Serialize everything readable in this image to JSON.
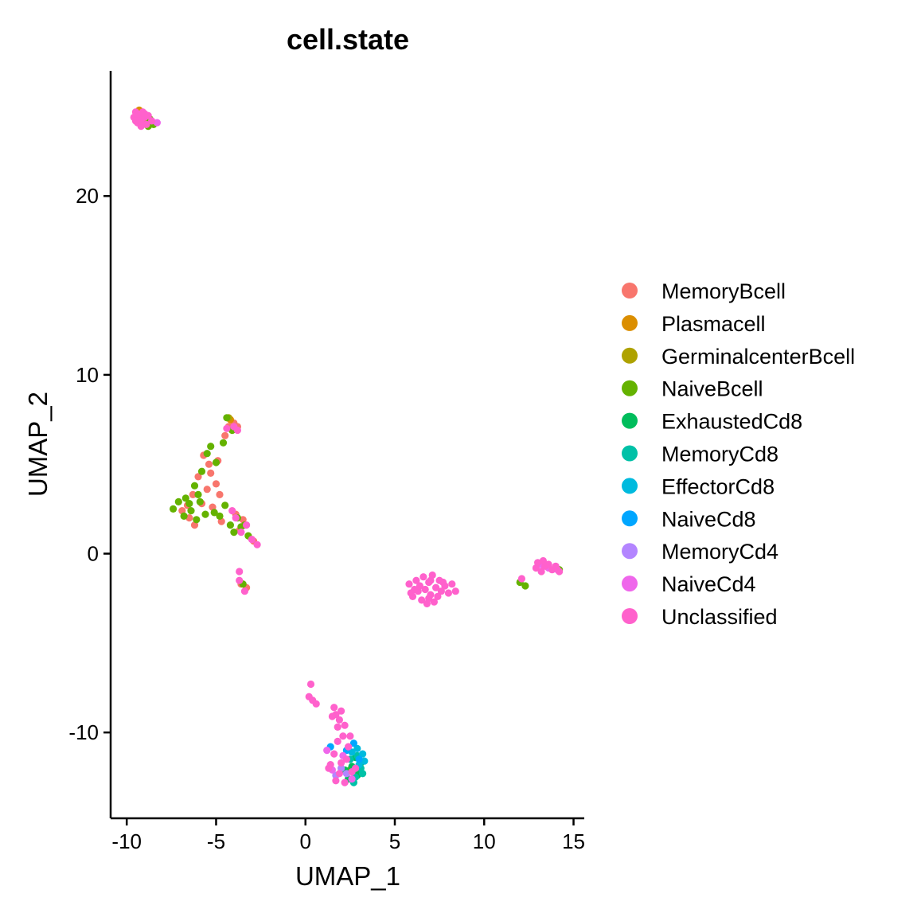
{
  "chart_data": {
    "type": "scatter",
    "title": "cell.state",
    "xlabel": "UMAP_1",
    "ylabel": "UMAP_2",
    "xlim": [
      -10.9,
      15.6
    ],
    "ylim": [
      -14.8,
      27.0
    ],
    "xticks": [
      -10,
      -5,
      0,
      5,
      10,
      15
    ],
    "yticks": [
      -10,
      0,
      10,
      20
    ],
    "grid": false,
    "legend_position": "right",
    "series": [
      {
        "name": "MemoryBcell",
        "color": "#F8766D",
        "points": [
          [
            -6.9,
            2.4
          ],
          [
            -6.5,
            2.0
          ],
          [
            -6.3,
            3.3
          ],
          [
            -6.0,
            4.3
          ],
          [
            -5.8,
            2.8
          ],
          [
            -5.5,
            3.6
          ],
          [
            -5.4,
            5.0
          ],
          [
            -5.2,
            2.6
          ],
          [
            -5.0,
            3.9
          ],
          [
            -4.9,
            5.2
          ],
          [
            -4.7,
            1.8
          ],
          [
            -4.5,
            6.6
          ],
          [
            -4.3,
            7.1
          ],
          [
            -4.1,
            6.9
          ],
          [
            -4.0,
            7.3
          ],
          [
            -3.9,
            2.2
          ],
          [
            -3.7,
            1.3
          ],
          [
            -3.5,
            1.9
          ],
          [
            -3.3,
            -1.9
          ],
          [
            -2.9,
            0.7
          ],
          [
            -6.2,
            1.6
          ],
          [
            -5.7,
            5.5
          ],
          [
            -4.8,
            3.3
          ],
          [
            -3.8,
            7.1
          ],
          [
            -3.6,
            -1.7
          ],
          [
            -6.6,
            2.7
          ],
          [
            -5.3,
            4.5
          ]
        ]
      },
      {
        "name": "Plasmacell",
        "color": "#DB8E00",
        "points": [
          [
            -9.3,
            24.8
          ],
          [
            -4.2,
            7.5
          ]
        ]
      },
      {
        "name": "GerminalcenterBcell",
        "color": "#AEA200",
        "points": [
          [
            -4.3,
            7.6
          ],
          [
            -9.0,
            24.1
          ]
        ]
      },
      {
        "name": "NaiveBcell",
        "color": "#64B200",
        "points": [
          [
            -7.4,
            2.5
          ],
          [
            -7.1,
            2.9
          ],
          [
            -6.8,
            2.1
          ],
          [
            -6.7,
            3.1
          ],
          [
            -6.4,
            2.4
          ],
          [
            -6.2,
            3.8
          ],
          [
            -6.1,
            1.9
          ],
          [
            -5.9,
            2.9
          ],
          [
            -5.8,
            4.6
          ],
          [
            -5.6,
            2.2
          ],
          [
            -5.5,
            5.6
          ],
          [
            -5.3,
            6.0
          ],
          [
            -5.1,
            2.3
          ],
          [
            -5.0,
            5.1
          ],
          [
            -4.8,
            2.1
          ],
          [
            -4.6,
            6.2
          ],
          [
            -4.5,
            2.7
          ],
          [
            -4.4,
            7.6
          ],
          [
            -4.2,
            1.6
          ],
          [
            -4.0,
            1.2
          ],
          [
            -3.8,
            2.0
          ],
          [
            -3.6,
            1.5
          ],
          [
            -3.4,
            1.6
          ],
          [
            -3.2,
            1.0
          ],
          [
            -3.5,
            -1.7
          ],
          [
            -8.5,
            24.0
          ],
          [
            -8.8,
            23.9
          ],
          [
            -8.7,
            24.3
          ],
          [
            -6.5,
            2.8
          ],
          [
            -6.0,
            3.3
          ],
          [
            -4.1,
            6.9
          ],
          [
            12.3,
            -1.8
          ],
          [
            12.0,
            -1.6
          ],
          [
            14.2,
            -0.9
          ],
          [
            2.5,
            -12.1
          ]
        ]
      },
      {
        "name": "ExhaustedCd8",
        "color": "#00BD5C",
        "points": [
          [
            2.2,
            -12.1
          ],
          [
            2.6,
            -11.9
          ],
          [
            2.9,
            -12.4
          ],
          [
            3.1,
            -11.7
          ],
          [
            2.4,
            -12.6
          ],
          [
            2.8,
            -11.4
          ],
          [
            3.0,
            -12.2
          ]
        ]
      },
      {
        "name": "MemoryCd8",
        "color": "#00C1A7",
        "points": [
          [
            2.7,
            -12.8
          ],
          [
            3.1,
            -12.0
          ],
          [
            2.5,
            -11.5
          ],
          [
            2.8,
            -12.5
          ],
          [
            3.2,
            -12.3
          ],
          [
            2.9,
            -11.3
          ]
        ]
      },
      {
        "name": "EffectorCd8",
        "color": "#00BADE",
        "points": [
          [
            3.2,
            -11.2
          ],
          [
            2.9,
            -10.9
          ],
          [
            3.3,
            -11.6
          ],
          [
            2.6,
            -11.1
          ],
          [
            3.0,
            -11.8
          ]
        ]
      },
      {
        "name": "NaiveCd8",
        "color": "#00A6FF",
        "points": [
          [
            1.4,
            -10.8
          ],
          [
            2.3,
            -11.0
          ],
          [
            2.7,
            -10.6
          ],
          [
            3.0,
            -11.5
          ]
        ]
      },
      {
        "name": "MemoryCd4",
        "color": "#B385FF",
        "points": [
          [
            1.7,
            -12.4
          ],
          [
            2.0,
            -12.0
          ],
          [
            2.3,
            -12.3
          ]
        ]
      },
      {
        "name": "NaiveCd4",
        "color": "#EF67EB",
        "points": [
          [
            1.2,
            -11.0
          ],
          [
            2.1,
            -11.3
          ],
          [
            1.5,
            -12.1
          ],
          [
            2.6,
            -12.6
          ],
          [
            13.2,
            -0.6
          ],
          [
            13.6,
            -0.8
          ],
          [
            -9.1,
            24.4
          ],
          [
            -8.3,
            24.1
          ],
          [
            14.1,
            -0.9
          ]
        ]
      },
      {
        "name": "Unclassified",
        "color": "#FF61CC",
        "points": [
          [
            -9.6,
            24.4
          ],
          [
            -9.5,
            24.7
          ],
          [
            -9.4,
            24.1
          ],
          [
            -9.3,
            24.5
          ],
          [
            -9.2,
            24.2
          ],
          [
            -9.1,
            24.7
          ],
          [
            -9.0,
            24.4
          ],
          [
            -8.9,
            24.0
          ],
          [
            -8.8,
            24.5
          ],
          [
            -9.4,
            24.6
          ],
          [
            -9.2,
            23.9
          ],
          [
            -8.6,
            24.2
          ],
          [
            -9.5,
            24.2
          ],
          [
            -9.0,
            24.6
          ],
          [
            -4.0,
            7.1
          ],
          [
            -3.8,
            6.9
          ],
          [
            -4.4,
            7.0
          ],
          [
            -3.9,
            2.0
          ],
          [
            -3.6,
            1.2
          ],
          [
            -3.3,
            1.6
          ],
          [
            -3.0,
            0.8
          ],
          [
            -2.7,
            0.5
          ],
          [
            -4.1,
            2.4
          ],
          [
            -3.7,
            -1.5
          ],
          [
            -3.4,
            -2.1
          ],
          [
            -3.7,
            -1.0
          ],
          [
            5.8,
            -1.7
          ],
          [
            6.0,
            -2.4
          ],
          [
            6.2,
            -1.5
          ],
          [
            6.3,
            -2.1
          ],
          [
            6.5,
            -2.6
          ],
          [
            6.6,
            -1.3
          ],
          [
            6.7,
            -2.0
          ],
          [
            6.8,
            -2.8
          ],
          [
            6.9,
            -1.6
          ],
          [
            7.0,
            -2.3
          ],
          [
            7.1,
            -1.2
          ],
          [
            7.2,
            -2.7
          ],
          [
            7.3,
            -1.9
          ],
          [
            7.4,
            -2.4
          ],
          [
            7.5,
            -1.5
          ],
          [
            7.6,
            -2.1
          ],
          [
            7.8,
            -1.8
          ],
          [
            8.0,
            -2.2
          ],
          [
            8.2,
            -1.7
          ],
          [
            8.4,
            -2.1
          ],
          [
            6.1,
            -2.0
          ],
          [
            6.4,
            -1.8
          ],
          [
            6.9,
            -2.5
          ],
          [
            7.7,
            -1.6
          ],
          [
            5.9,
            -2.2
          ],
          [
            7.0,
            -1.5
          ],
          [
            12.9,
            -0.8
          ],
          [
            13.0,
            -0.5
          ],
          [
            13.2,
            -1.0
          ],
          [
            13.4,
            -0.7
          ],
          [
            13.6,
            -0.6
          ],
          [
            13.8,
            -0.9
          ],
          [
            14.0,
            -0.7
          ],
          [
            14.2,
            -1.0
          ],
          [
            13.3,
            -0.4
          ],
          [
            12.1,
            -1.4
          ],
          [
            0.3,
            -7.3
          ],
          [
            0.2,
            -8.0
          ],
          [
            0.4,
            -8.2
          ],
          [
            0.6,
            -8.4
          ],
          [
            1.6,
            -8.6
          ],
          [
            1.7,
            -9.0
          ],
          [
            1.9,
            -9.3
          ],
          [
            2.0,
            -8.8
          ],
          [
            2.2,
            -9.6
          ],
          [
            1.8,
            -9.7
          ],
          [
            2.1,
            -10.2
          ],
          [
            1.8,
            -10.5
          ],
          [
            1.6,
            -11.2
          ],
          [
            1.4,
            -11.8
          ],
          [
            1.3,
            -12.0
          ],
          [
            1.7,
            -12.7
          ],
          [
            2.2,
            -12.8
          ],
          [
            2.5,
            -10.2
          ],
          [
            2.3,
            -11.5
          ],
          [
            2.6,
            -12.2
          ],
          [
            2.0,
            -11.7
          ],
          [
            2.8,
            -12.0
          ],
          [
            1.9,
            -12.3
          ],
          [
            1.5,
            -9.1
          ],
          [
            2.4,
            -10.8
          ]
        ]
      }
    ]
  }
}
